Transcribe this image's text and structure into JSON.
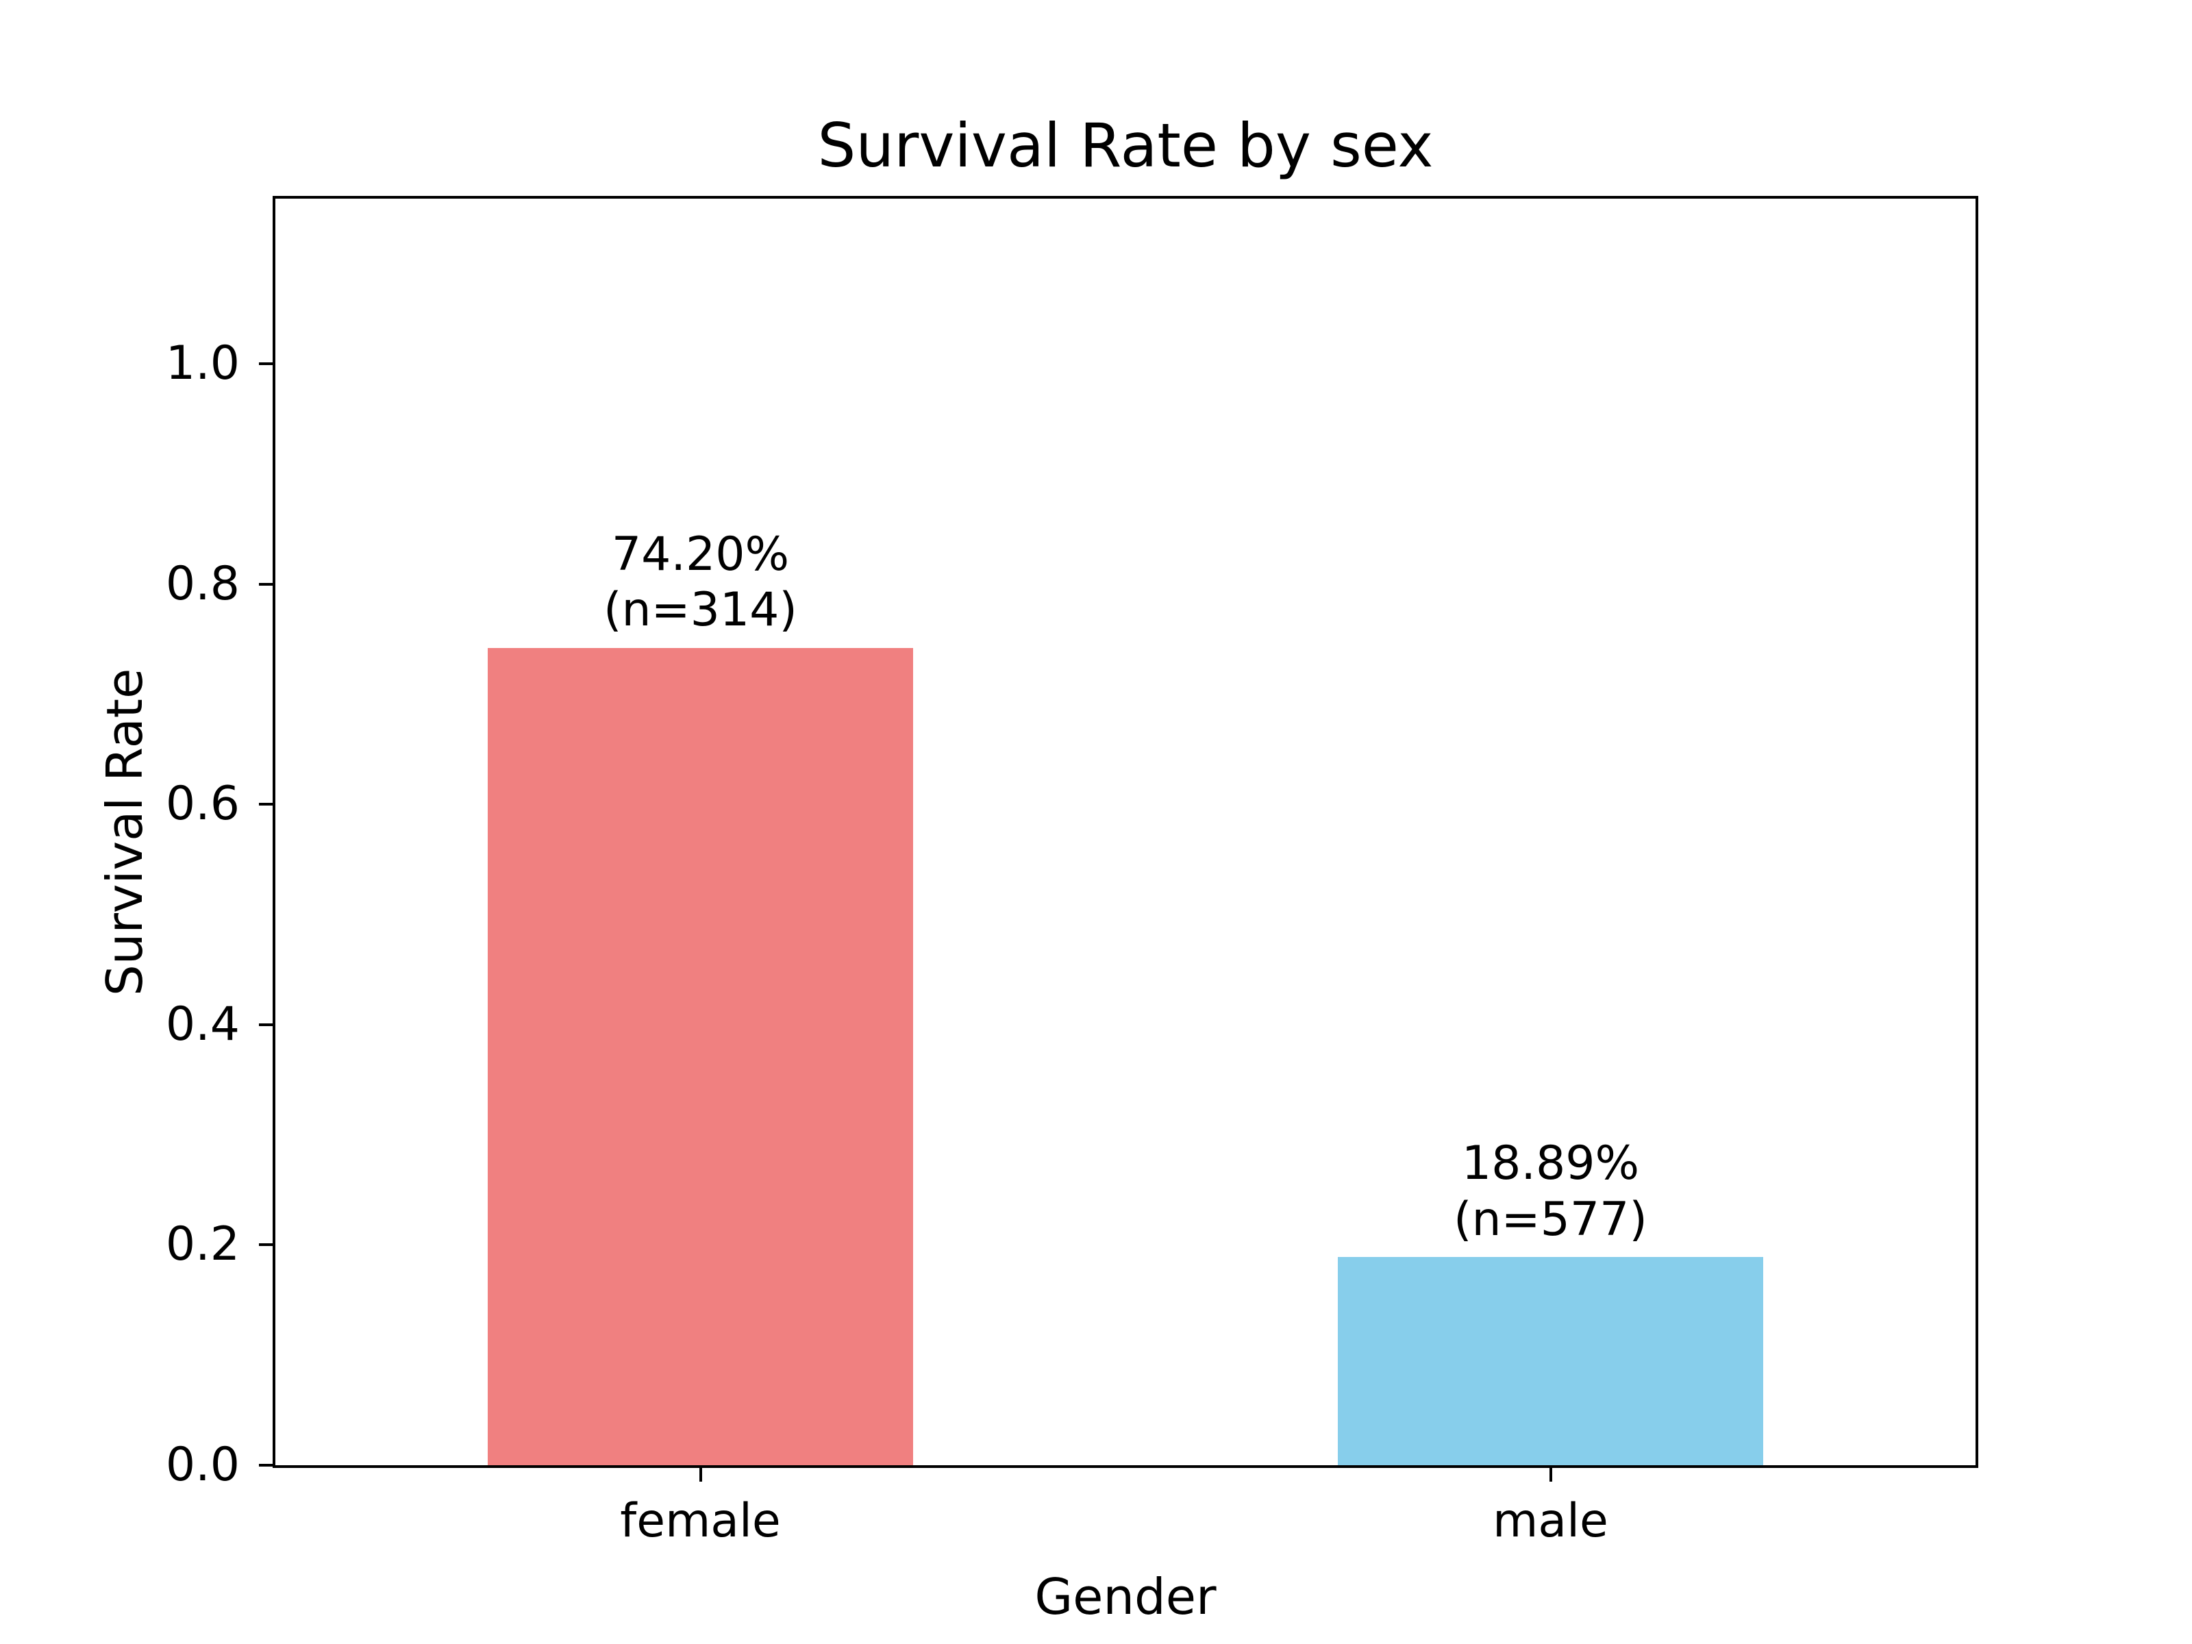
{
  "chart_data": {
    "type": "bar",
    "title": "Survival Rate by sex",
    "xlabel": "Gender",
    "ylabel": "Survival Rate",
    "categories": [
      "female",
      "male"
    ],
    "values": [
      0.742,
      0.1889
    ],
    "counts": [
      314,
      577
    ],
    "annotations": [
      "74.20%\n(n=314)",
      "18.89%\n(n=577)"
    ],
    "bar_colors": [
      "#f08080",
      "#87ceeb"
    ],
    "yticks": [
      "0.0",
      "0.2",
      "0.4",
      "0.6",
      "0.8",
      "1.0"
    ],
    "ylim": [
      0,
      1.15
    ],
    "grid": false,
    "legend": "none",
    "frame_color": "#000000",
    "background_color": "#ffffff"
  }
}
